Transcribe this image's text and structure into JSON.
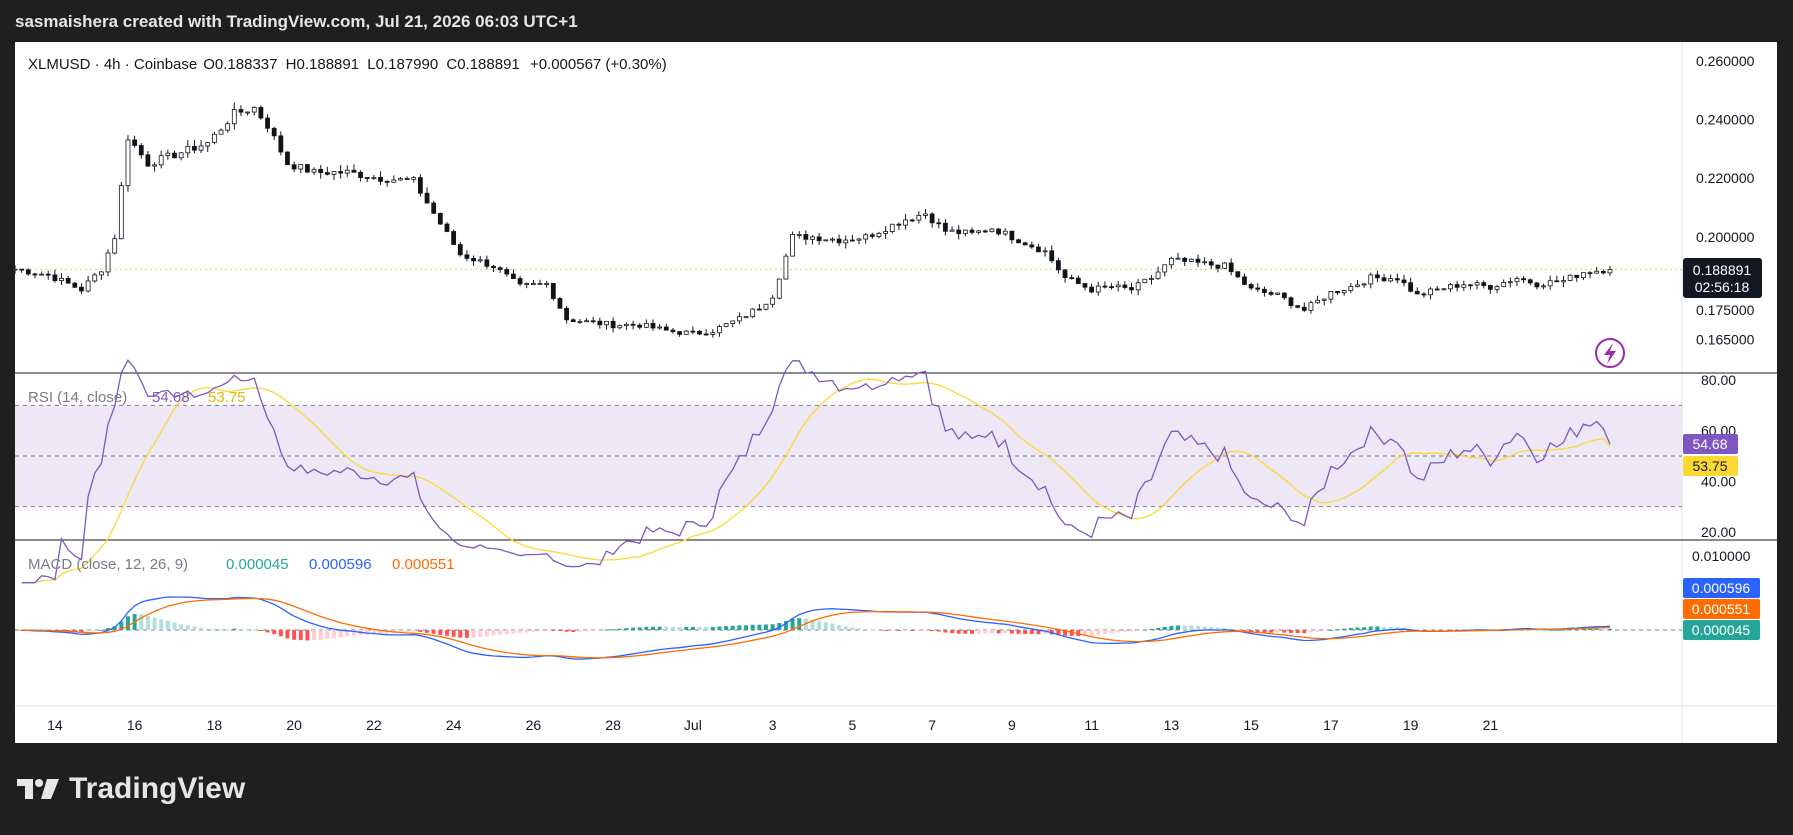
{
  "header": {
    "attribution": "sasmaishera created with TradingView.com, Jul 21, 2026 06:03 UTC+1"
  },
  "footer": {
    "brand": "TradingView"
  },
  "colors": {
    "bull": "#ffffff",
    "bear": "#131313",
    "rsi": "#7e57c2",
    "rsi_ma": "#fdd835",
    "macd": "#2962ff",
    "signal": "#ff6d00",
    "hist_pos_up": "#26a69a",
    "hist_pos_down": "#b2dfdb",
    "hist_neg_down": "#ff5252",
    "hist_neg_up": "#ffcdd2",
    "rsi_band": "#ede7f6"
  },
  "chart_data": [
    {
      "type": "candlestick",
      "title": "XLMUSD · 4h · Coinbase",
      "ohlc_legend": {
        "o_label": "O",
        "o": "0.188337",
        "h_label": "H",
        "h": "0.188891",
        "l_label": "L",
        "l": "0.187990",
        "c_label": "C",
        "c": "0.188891",
        "change": "+0.000567 (+0.30%)"
      },
      "x_ticks": [
        "14",
        "16",
        "18",
        "20",
        "22",
        "24",
        "26",
        "28",
        "Jul",
        "3",
        "5",
        "7",
        "9",
        "11",
        "13",
        "15",
        "17",
        "19",
        "21"
      ],
      "y_ticks": [
        "0.260000",
        "0.240000",
        "0.220000",
        "0.200000",
        "0.175000",
        "0.165000"
      ],
      "last_price": "0.188891",
      "countdown": "02:56:18",
      "close_anchors": [
        [
          0,
          0.189
        ],
        [
          5,
          0.187
        ],
        [
          10,
          0.182
        ],
        [
          13,
          0.189
        ],
        [
          15,
          0.2
        ],
        [
          17,
          0.234
        ],
        [
          20,
          0.225
        ],
        [
          24,
          0.228
        ],
        [
          29,
          0.232
        ],
        [
          33,
          0.242
        ],
        [
          36,
          0.244
        ],
        [
          38,
          0.238
        ],
        [
          41,
          0.225
        ],
        [
          45,
          0.222
        ],
        [
          50,
          0.222
        ],
        [
          55,
          0.22
        ],
        [
          60,
          0.219
        ],
        [
          63,
          0.208
        ],
        [
          67,
          0.194
        ],
        [
          72,
          0.19
        ],
        [
          76,
          0.183
        ],
        [
          80,
          0.184
        ],
        [
          83,
          0.172
        ],
        [
          86,
          0.171
        ],
        [
          90,
          0.17
        ],
        [
          94,
          0.17
        ],
        [
          98,
          0.168
        ],
        [
          102,
          0.167
        ],
        [
          105,
          0.168
        ],
        [
          109,
          0.172
        ],
        [
          112,
          0.176
        ],
        [
          114,
          0.18
        ],
        [
          117,
          0.2
        ],
        [
          120,
          0.2
        ],
        [
          124,
          0.199
        ],
        [
          128,
          0.2
        ],
        [
          131,
          0.203
        ],
        [
          134,
          0.206
        ],
        [
          137,
          0.208
        ],
        [
          140,
          0.202
        ],
        [
          144,
          0.201
        ],
        [
          147,
          0.203
        ],
        [
          151,
          0.199
        ],
        [
          155,
          0.195
        ],
        [
          158,
          0.186
        ],
        [
          162,
          0.182
        ],
        [
          165,
          0.183
        ],
        [
          168,
          0.182
        ],
        [
          171,
          0.186
        ],
        [
          174,
          0.192
        ],
        [
          178,
          0.191
        ],
        [
          182,
          0.19
        ],
        [
          186,
          0.182
        ],
        [
          190,
          0.18
        ],
        [
          194,
          0.175
        ],
        [
          198,
          0.181
        ],
        [
          201,
          0.183
        ],
        [
          204,
          0.186
        ],
        [
          208,
          0.186
        ],
        [
          211,
          0.18
        ],
        [
          214,
          0.182
        ],
        [
          218,
          0.184
        ],
        [
          222,
          0.183
        ],
        [
          226,
          0.186
        ],
        [
          229,
          0.184
        ],
        [
          233,
          0.185
        ],
        [
          236,
          0.188
        ],
        [
          240,
          0.189
        ]
      ]
    },
    {
      "type": "line",
      "title": "RSI (14, close)",
      "series": [
        {
          "name": "RSI",
          "value": "54.68"
        },
        {
          "name": "RSI-based MA",
          "value": "53.75"
        }
      ],
      "y_ticks": [
        "80.00",
        "60.00",
        "40.00",
        "20.00"
      ],
      "ylim": [
        20,
        80
      ],
      "band": [
        30,
        70
      ]
    },
    {
      "type": "line",
      "title": "MACD (close, 12, 26, 9)",
      "series": [
        {
          "name": "Histogram",
          "value": "0.000045"
        },
        {
          "name": "MACD",
          "value": "0.000596"
        },
        {
          "name": "Signal",
          "value": "0.000551"
        }
      ],
      "y_ticks": [
        "0.010000"
      ]
    }
  ]
}
